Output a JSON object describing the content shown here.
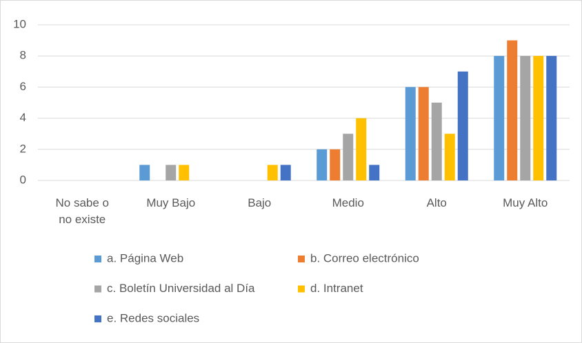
{
  "chart_data": {
    "type": "bar",
    "categories": [
      "No sabe o no existe",
      "Muy Bajo",
      "Bajo",
      "Medio",
      "Alto",
      "Muy Alto"
    ],
    "series": [
      {
        "name": "a. Página Web",
        "color": "#5b9bd5",
        "values": [
          0,
          1,
          0,
          2,
          6,
          8
        ]
      },
      {
        "name": "b. Correo electrónico",
        "color": "#ed7d31",
        "values": [
          0,
          0,
          0,
          2,
          6,
          9
        ]
      },
      {
        "name": "c. Boletín Universidad al Día",
        "color": "#a5a5a5",
        "values": [
          0,
          1,
          0,
          3,
          5,
          8
        ]
      },
      {
        "name": "d. Intranet",
        "color": "#ffc000",
        "values": [
          0,
          1,
          1,
          4,
          3,
          8
        ]
      },
      {
        "name": "e. Redes sociales",
        "color": "#4472c4",
        "values": [
          0,
          0,
          1,
          1,
          7,
          8
        ]
      }
    ],
    "ylim": [
      0,
      10
    ],
    "yticks": [
      0,
      2,
      4,
      6,
      8,
      10
    ],
    "grid": true,
    "legend": "bottom"
  }
}
